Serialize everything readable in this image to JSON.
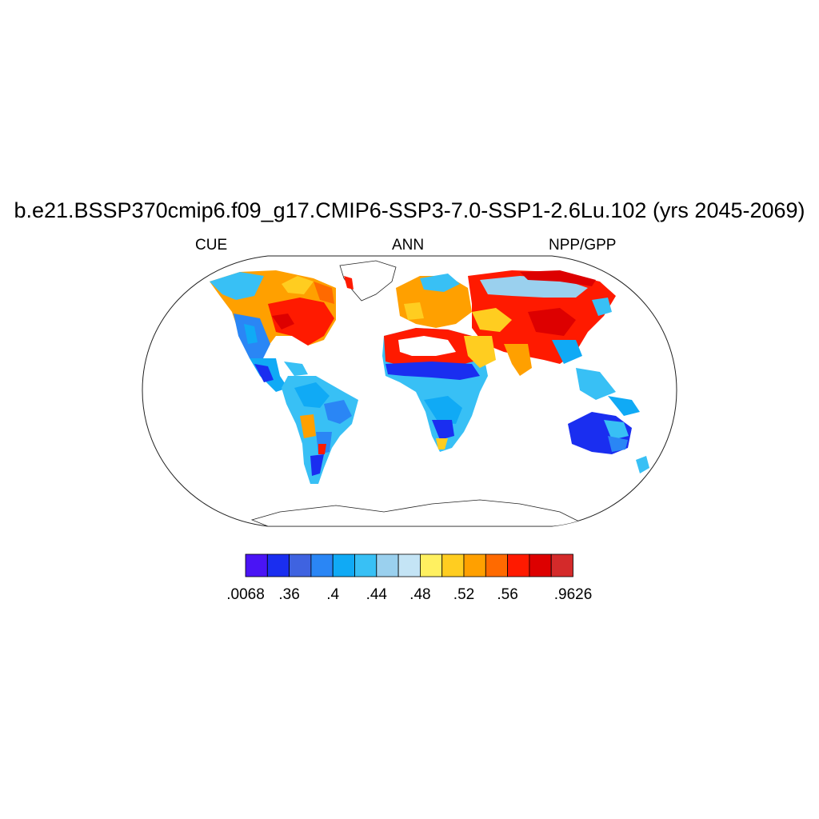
{
  "title": "b.e21.BSSP370cmip6.f09_g17.CMIP6-SSP3-7.0-SSP1-2.6Lu.102 (yrs 2045-2069)",
  "subtitle_left": "CUE",
  "subtitle_center": "ANN",
  "subtitle_right": "NPP/GPP",
  "projection": "robinson",
  "colorbar": {
    "colors": [
      "#4a14f5",
      "#1a2ef0",
      "#3f63e0",
      "#2a86f5",
      "#10aaf5",
      "#38c0f5",
      "#9ad0ee",
      "#c4e4f5",
      "#fff060",
      "#ffcd20",
      "#ffa000",
      "#ff6a00",
      "#ff1a00",
      "#dd0000",
      "#d42a2a"
    ],
    "labels": [
      {
        "text": ".0068",
        "index": 0
      },
      {
        "text": ".36",
        "index": 2
      },
      {
        "text": ".4",
        "index": 4
      },
      {
        "text": ".44",
        "index": 6
      },
      {
        "text": ".48",
        "index": 8
      },
      {
        "text": ".52",
        "index": 10
      },
      {
        "text": ".56",
        "index": 12
      },
      {
        "text": ".9626",
        "index": 15
      }
    ]
  },
  "field_regions": [
    {
      "name": "Canada / Alaska",
      "color": "#ffa000"
    },
    {
      "name": "Eastern USA",
      "color": "#ff1a00"
    },
    {
      "name": "Western USA",
      "color": "#2a86f5"
    },
    {
      "name": "Mexico / Central America",
      "color": "#10aaf5"
    },
    {
      "name": "Amazon",
      "color": "#38c0f5"
    },
    {
      "name": "Southern South America",
      "color": "#2a86f5"
    },
    {
      "name": "Sahara / Arabia",
      "color": "#ff1a00"
    },
    {
      "name": "Sahel",
      "color": "#1a2ef0"
    },
    {
      "name": "Central / Southern Africa",
      "color": "#38c0f5"
    },
    {
      "name": "Europe",
      "color": "#ffa000"
    },
    {
      "name": "Siberia",
      "color": "#9ad0ee"
    },
    {
      "name": "Central Asia / China",
      "color": "#ff1a00"
    },
    {
      "name": "Southeast Asia",
      "color": "#38c0f5"
    },
    {
      "name": "Australia",
      "color": "#1a2ef0"
    },
    {
      "name": "Greenland",
      "color": "#ffffff"
    },
    {
      "name": "Antarctica",
      "color": "#ffffff"
    }
  ]
}
